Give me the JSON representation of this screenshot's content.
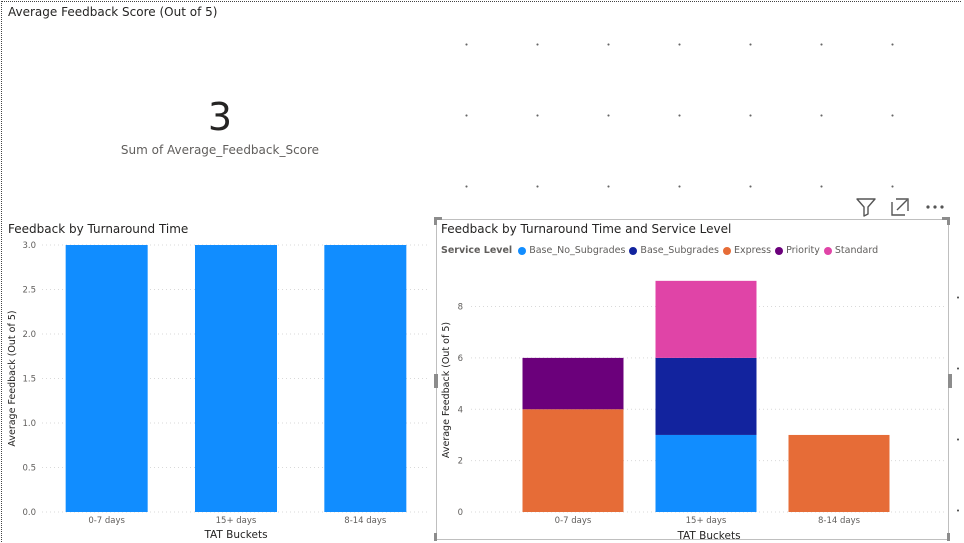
{
  "card": {
    "title": "Average Feedback Score (Out of 5)",
    "value": "3",
    "label": "Sum of Average_Feedback_Score"
  },
  "chart_data": [
    {
      "type": "bar",
      "title": "Feedback by Turnaround Time",
      "xlabel": "TAT Buckets",
      "ylabel": "Average Feedback (Out of 5)",
      "categories": [
        "0-7 days",
        "15+ days",
        "8-14 days"
      ],
      "values": [
        3,
        3,
        3
      ],
      "ylim": [
        0,
        3
      ],
      "yticks": [
        "0.0",
        "0.5",
        "1.0",
        "1.5",
        "2.0",
        "2.5",
        "3.0"
      ],
      "color": "#118DFF",
      "grid": true
    },
    {
      "type": "bar",
      "stacked": true,
      "title": "Feedback by Turnaround Time and Service Level",
      "xlabel": "TAT Buckets",
      "ylabel": "Average Feedback (Out of 5)",
      "legend_title": "Service Level",
      "legend_position": "top-left",
      "categories": [
        "0-7 days",
        "15+ days",
        "8-14 days"
      ],
      "series": [
        {
          "name": "Base_No_Subgrades",
          "color": "#118DFF",
          "values": [
            0,
            3,
            0
          ]
        },
        {
          "name": "Base_Subgrades",
          "color": "#12239E",
          "values": [
            0,
            3,
            0
          ]
        },
        {
          "name": "Express",
          "color": "#E66C37",
          "values": [
            4,
            0,
            3
          ]
        },
        {
          "name": "Priority",
          "color": "#6B007B",
          "values": [
            2,
            0,
            0
          ]
        },
        {
          "name": "Standard",
          "color": "#E044A7",
          "values": [
            0,
            3,
            0
          ]
        }
      ],
      "stack_order": [
        "Express",
        "Base_No_Subgrades",
        "Priority",
        "Base_Subgrades",
        "Standard"
      ],
      "ylim": [
        0,
        9.5
      ],
      "yticks": [
        "0",
        "2",
        "4",
        "6",
        "8"
      ],
      "grid": true
    }
  ],
  "toolbar": {
    "filter_icon": "filter-icon",
    "focus_icon": "focus-mode-icon",
    "more_icon": "more-options-icon"
  }
}
